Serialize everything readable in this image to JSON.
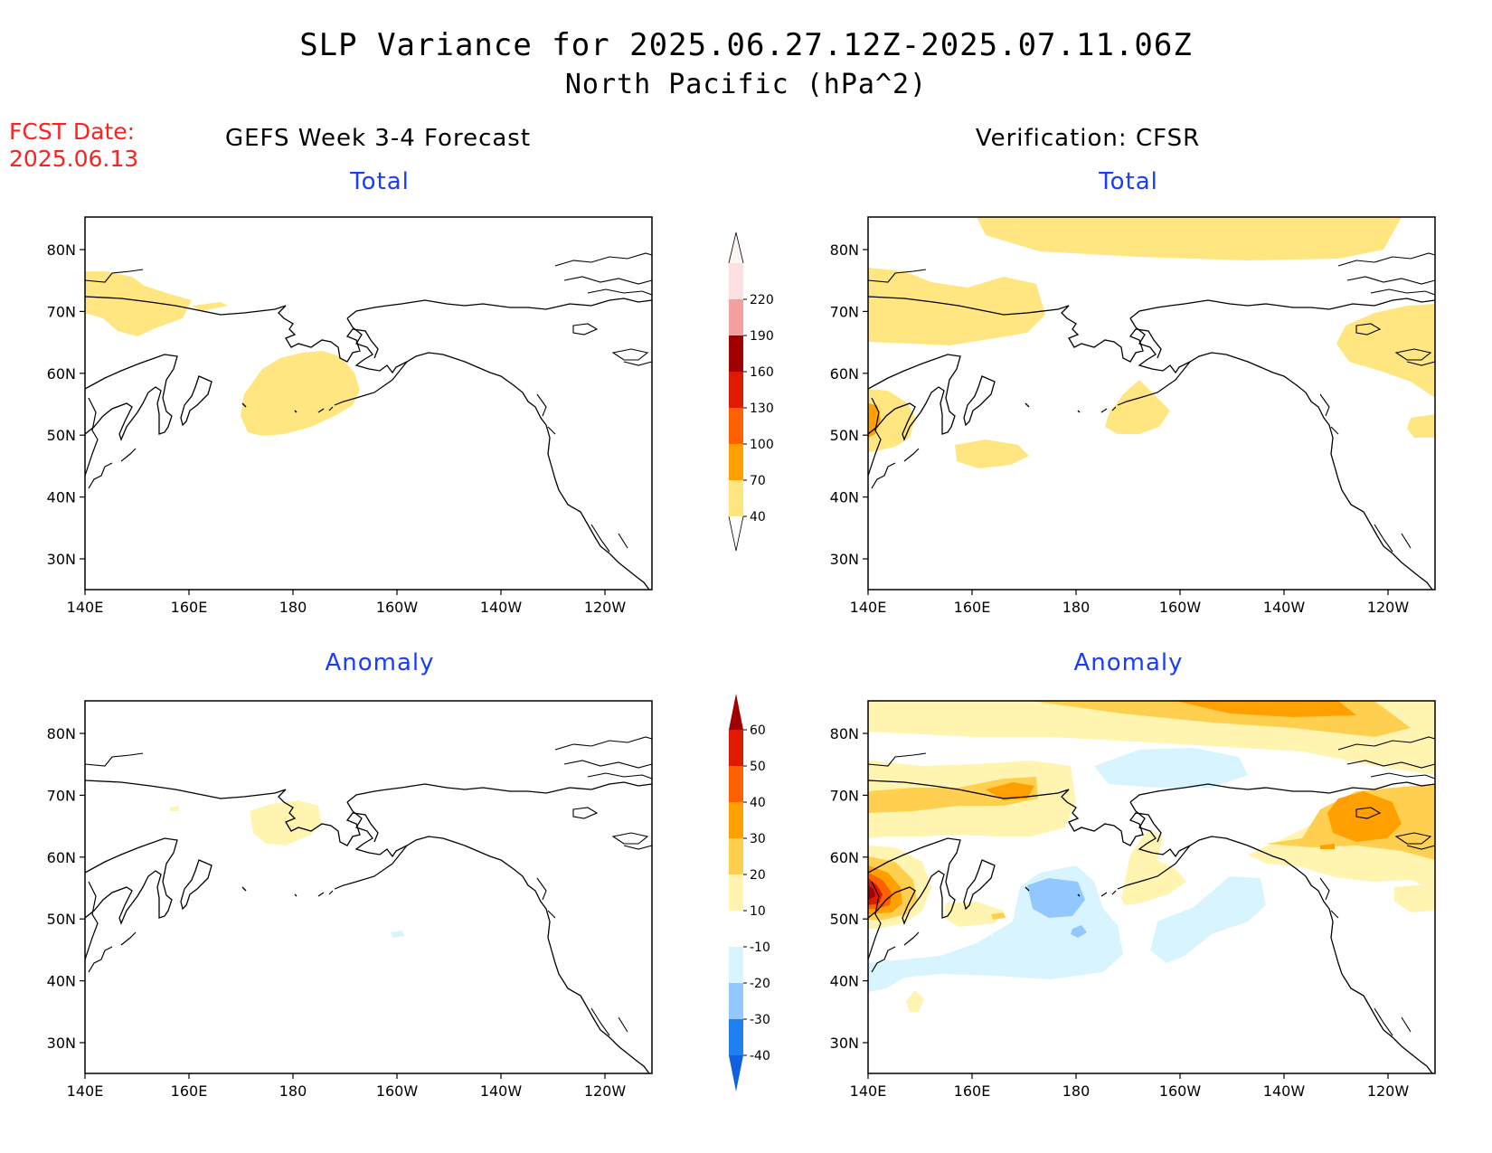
{
  "title_line1": "SLP Variance for 2025.06.27.12Z-2025.07.11.06Z",
  "title_line2": "North Pacific (hPa^2)",
  "fcst_label": "FCST Date:",
  "fcst_date": "2025.06.13",
  "left_header": "GEFS Week 3-4 Forecast",
  "right_header": "Verification: CFSR",
  "panels": {
    "fc_total": {
      "subtitle": "Total"
    },
    "vf_total": {
      "subtitle": "Total"
    },
    "fc_anom": {
      "subtitle": "Anomaly"
    },
    "vf_anom": {
      "subtitle": "Anomaly"
    }
  },
  "lat_labels": [
    "80N",
    "70N",
    "60N",
    "50N",
    "40N",
    "30N"
  ],
  "lon_labels": [
    "140E",
    "160E",
    "180",
    "160W",
    "140W",
    "120W"
  ],
  "total_colorbar": {
    "levels": [
      "40",
      "70",
      "100",
      "130",
      "160",
      "190",
      "220"
    ],
    "colors": [
      "#ffe680",
      "#ffa000",
      "#ff6000",
      "#e01a00",
      "#a00000",
      "#f4a0a0",
      "#fde0e0"
    ]
  },
  "anom_colorbar": {
    "levels": [
      "-40",
      "-30",
      "-20",
      "-10",
      "10",
      "20",
      "30",
      "40",
      "50",
      "60"
    ],
    "colors": [
      "#1060e0",
      "#2080f0",
      "#90c8ff",
      "#d8f4ff",
      "#ffffff",
      "#fff4b0",
      "#ffd050",
      "#ffa000",
      "#ff6000",
      "#e01a00",
      "#a00000"
    ]
  },
  "colors": {
    "light_yellow": "#ffe680",
    "pale_yellow": "#fff4b0",
    "yellow_orange": "#ffd050",
    "orange": "#ffa000",
    "dark_orange": "#ff6000",
    "red": "#e01a00",
    "dark_red": "#a00000",
    "light_blue": "#d8f4ff",
    "blue": "#90c8ff",
    "subtitle_blue": "#1a3cff",
    "fcst_red": "#ff2020"
  }
}
